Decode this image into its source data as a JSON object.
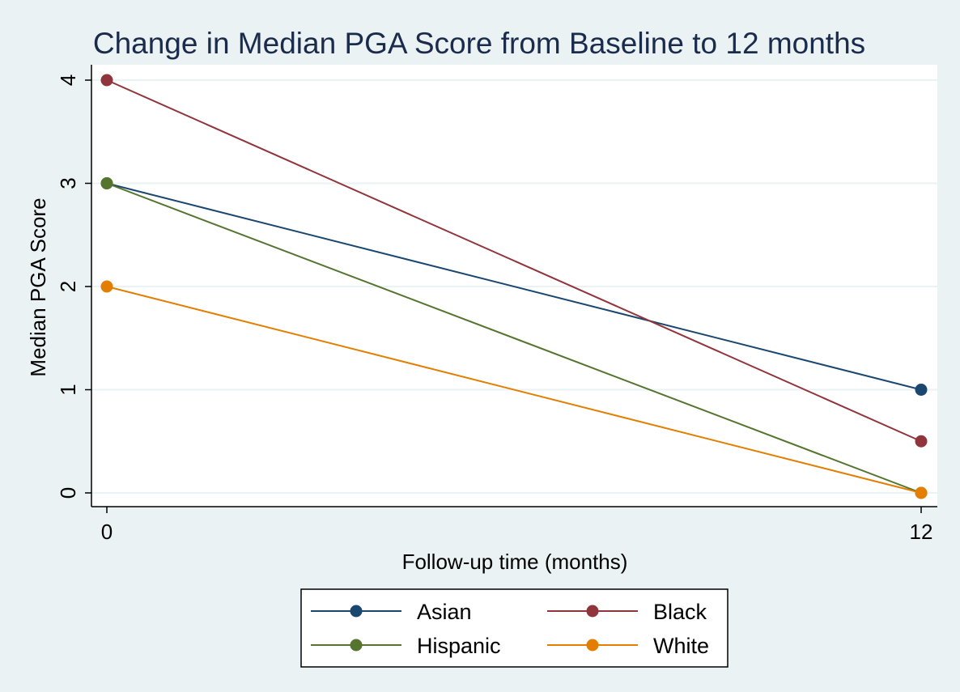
{
  "chart_data": {
    "type": "line",
    "title": "Change in Median PGA Score from Baseline to 12 months",
    "xlabel": "Follow-up time (months)",
    "ylabel": "Median PGA Score",
    "x": [
      0,
      12
    ],
    "x_ticks": [
      "0",
      "12"
    ],
    "y_ticks": [
      "0",
      "1",
      "2",
      "3",
      "4"
    ],
    "xlim": [
      0,
      12
    ],
    "ylim": [
      0,
      4
    ],
    "grid": true,
    "legend_position": "bottom",
    "series": [
      {
        "name": "Asian",
        "values": [
          3,
          1
        ],
        "color": "#1a476f"
      },
      {
        "name": "Black",
        "values": [
          4,
          0.5
        ],
        "color": "#90353b"
      },
      {
        "name": "Hispanic",
        "values": [
          3,
          0
        ],
        "color": "#55752f"
      },
      {
        "name": "White",
        "values": [
          2,
          0
        ],
        "color": "#e37e00"
      }
    ]
  }
}
